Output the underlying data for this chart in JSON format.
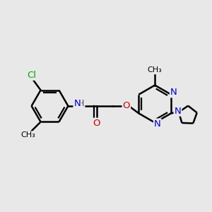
{
  "background_color": "#e8e8e8",
  "bond_color": "#000000",
  "bond_width": 1.8,
  "atom_colors": {
    "C": "#000000",
    "N": "#0000cc",
    "O": "#cc0000",
    "Cl": "#00aa00",
    "H": "#555555"
  },
  "font_size": 9.5,
  "figsize": [
    3.0,
    3.0
  ],
  "dpi": 100
}
